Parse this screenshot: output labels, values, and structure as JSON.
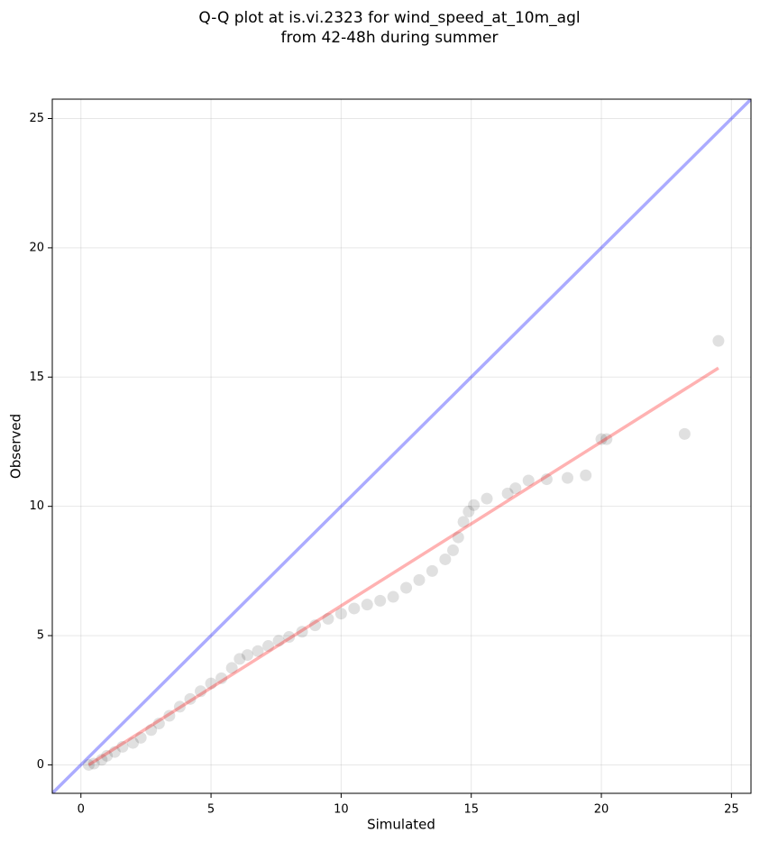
{
  "chart_data": {
    "type": "scatter",
    "title": [
      "Q-Q plot at is.vi.2323 for wind_speed_at_10m_agl",
      "from 42-48h during summer"
    ],
    "x_label": "Simulated",
    "y_label": "Observed",
    "x": [
      0.3,
      0.5,
      0.8,
      1.0,
      1.3,
      1.6,
      2.0,
      2.3,
      2.7,
      3.0,
      3.4,
      3.8,
      4.2,
      4.6,
      5.0,
      5.4,
      5.8,
      6.1,
      6.4,
      6.8,
      7.2,
      7.6,
      8.0,
      8.5,
      9.0,
      9.5,
      10.0,
      10.5,
      11.0,
      11.5,
      12.0,
      12.5,
      13.0,
      13.5,
      14.0,
      14.3,
      14.5,
      14.7,
      14.9,
      15.1,
      15.6,
      16.4,
      16.7,
      17.2,
      17.9,
      18.7,
      19.4,
      20.0,
      20.2,
      23.2,
      24.5
    ],
    "y": [
      0.0,
      0.05,
      0.2,
      0.35,
      0.5,
      0.7,
      0.85,
      1.05,
      1.35,
      1.6,
      1.9,
      2.25,
      2.55,
      2.85,
      3.15,
      3.35,
      3.75,
      4.1,
      4.25,
      4.4,
      4.6,
      4.8,
      4.95,
      5.15,
      5.4,
      5.65,
      5.85,
      6.05,
      6.2,
      6.35,
      6.5,
      6.85,
      7.15,
      7.5,
      7.95,
      8.3,
      8.8,
      9.4,
      9.8,
      10.05,
      10.3,
      10.5,
      10.7,
      11.0,
      11.05,
      11.1,
      11.2,
      12.6,
      12.6,
      12.8,
      16.4
    ],
    "color": "#000000",
    "fit_line": {
      "x": [
        0.3,
        24.5
      ],
      "y": [
        0.0,
        15.35
      ],
      "color": "#ff0000"
    },
    "identity_line": {
      "x": [
        -1.1,
        25.75
      ],
      "y": [
        -1.1,
        25.75
      ],
      "color": "#0000ff"
    },
    "xlim": [
      -1.1,
      25.75
    ],
    "ylim": [
      -1.1,
      25.75
    ],
    "xticks": [
      0,
      5,
      10,
      15,
      20,
      25
    ],
    "yticks": [
      0,
      5,
      10,
      15,
      20,
      25
    ],
    "grid": true
  }
}
